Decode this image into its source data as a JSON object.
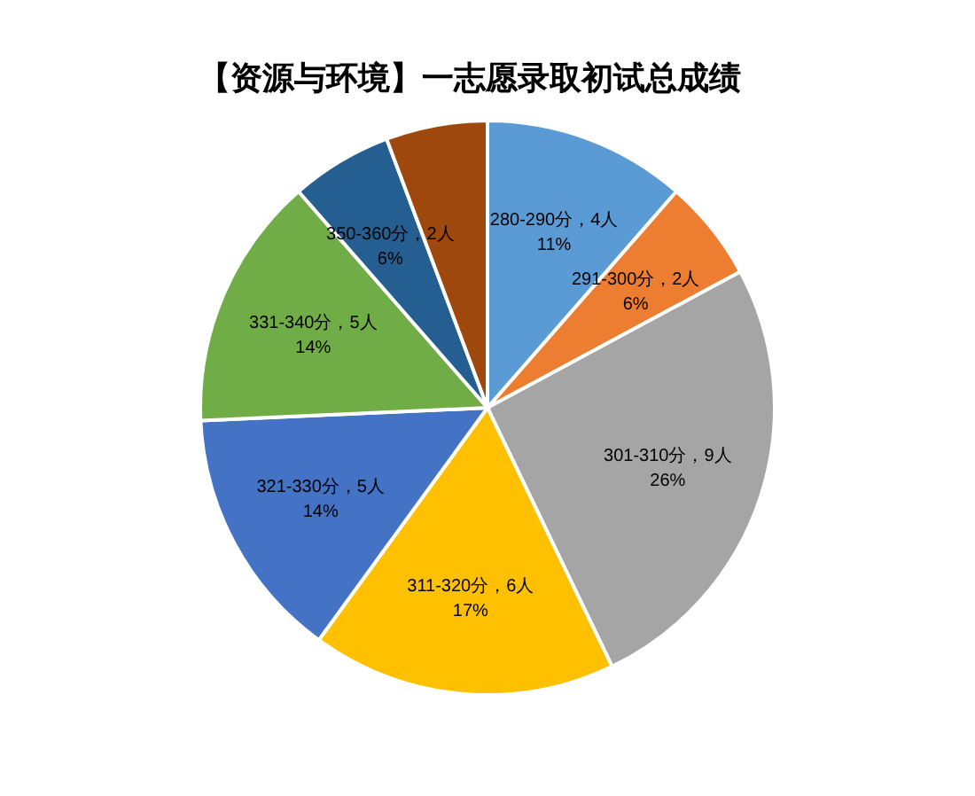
{
  "chart_data": {
    "type": "pie",
    "title": "【资源与环境】一志愿录取初试总成绩",
    "categories": [
      "280-290分",
      "291-300分",
      "301-310分",
      "311-320分",
      "321-330分",
      "331-340分",
      "350-360分",
      null
    ],
    "values": [
      4,
      2,
      9,
      6,
      5,
      5,
      2,
      2
    ],
    "value_labels": [
      "4人\n11%",
      "2人\n6%",
      "9人\n26%",
      "6人\n17%",
      "5人\n14%",
      "5人\n14%",
      "2人\n6%",
      null
    ],
    "colors": [
      "#5b9bd5",
      "#ed7d31",
      "#a5a5a5",
      "#ffc000",
      "#4472c4",
      "#70ad47",
      "#255e91",
      "#9e480e"
    ]
  }
}
